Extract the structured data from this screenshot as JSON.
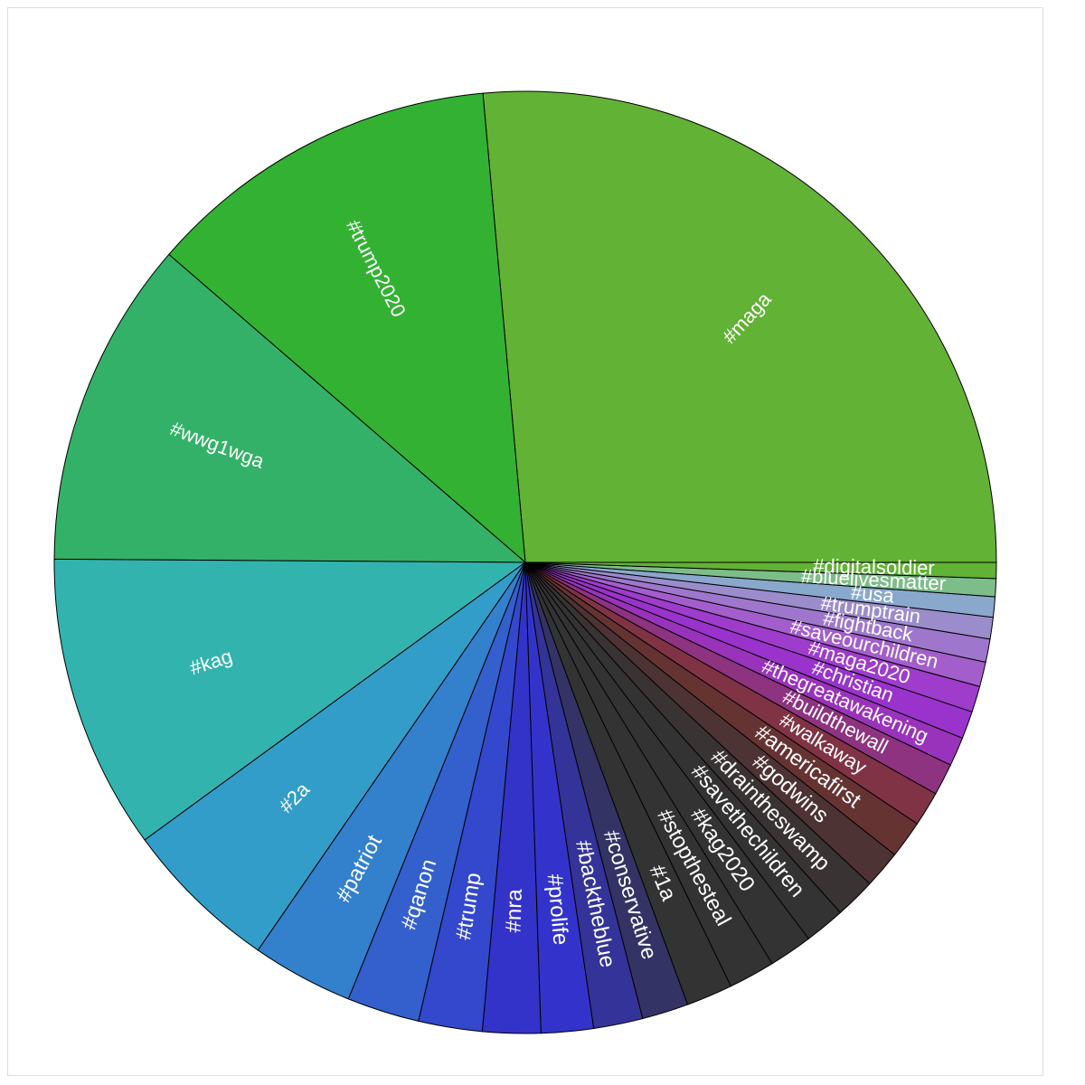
{
  "chart_data": {
    "type": "pie",
    "title": "",
    "start": "right",
    "direction": "counterclockwise",
    "slices": [
      {
        "label": "#maga",
        "value": 26.6,
        "color": "#62b235"
      },
      {
        "label": "#trump2020",
        "value": 12.3,
        "color": "#33b133"
      },
      {
        "label": "#wwg1wga",
        "value": 11.3,
        "color": "#33b168"
      },
      {
        "label": "#kag",
        "value": 10.2,
        "color": "#33b3ae"
      },
      {
        "label": "#2a",
        "value": 5.4,
        "color": "#339dc9"
      },
      {
        "label": "#patriot",
        "value": 3.5,
        "color": "#3380cc"
      },
      {
        "label": "#qanon",
        "value": 2.5,
        "color": "#3360cc"
      },
      {
        "label": "#trump",
        "value": 2.2,
        "color": "#3348cc"
      },
      {
        "label": "#nra",
        "value": 2.0,
        "color": "#3333c9"
      },
      {
        "label": "#prolife",
        "value": 1.8,
        "color": "#3333cc"
      },
      {
        "label": "#backtheblue",
        "value": 1.7,
        "color": "#333399"
      },
      {
        "label": "#conservative",
        "value": 1.6,
        "color": "#333366"
      },
      {
        "label": "#1a",
        "value": 1.6,
        "color": "#333333"
      },
      {
        "label": "#stopthesteal",
        "value": 1.6,
        "color": "#333333"
      },
      {
        "label": "#kag2020",
        "value": 1.5,
        "color": "#333333"
      },
      {
        "label": "#savethechildren",
        "value": 1.4,
        "color": "#333333"
      },
      {
        "label": "#draintheswamp",
        "value": 1.4,
        "color": "#3a3333"
      },
      {
        "label": "#godwins",
        "value": 1.3,
        "color": "#4d3333"
      },
      {
        "label": "#americafirst",
        "value": 1.3,
        "color": "#663333"
      },
      {
        "label": "#walkaway",
        "value": 1.2,
        "color": "#803344"
      },
      {
        "label": "#buildthewall",
        "value": 1.1,
        "color": "#8d3380"
      },
      {
        "label": "#thegreatawakening",
        "value": 1.0,
        "color": "#9933bb"
      },
      {
        "label": "#christian",
        "value": 0.95,
        "color": "#9933cc"
      },
      {
        "label": "#maga2020",
        "value": 0.9,
        "color": "#9e3ccc"
      },
      {
        "label": "#saveourchildren",
        "value": 0.85,
        "color": "#a35ecc"
      },
      {
        "label": "#fightback",
        "value": 0.8,
        "color": "#9e77cc"
      },
      {
        "label": "#trumptrain",
        "value": 0.75,
        "color": "#9b8ccc"
      },
      {
        "label": "#usa",
        "value": 0.7,
        "color": "#8aa8cc"
      },
      {
        "label": "#bluelivesmatter",
        "value": 0.62,
        "color": "#7dbd8a"
      },
      {
        "label": "#digitalsoldier",
        "value": 0.55,
        "color": "#62b235"
      }
    ]
  }
}
